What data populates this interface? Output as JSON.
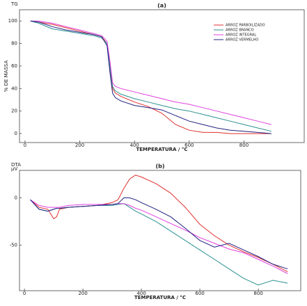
{
  "chart_data": [
    {
      "type": "line",
      "title": "(a)",
      "corner_label": "TG",
      "y_label": "% DE MASSA",
      "x_label": "TEMPERATURA / °C",
      "x": [
        20,
        50,
        100,
        150,
        200,
        250,
        280,
        300,
        310,
        320,
        330,
        350,
        400,
        450,
        500,
        550,
        600,
        650,
        700,
        750,
        800,
        850,
        900
      ],
      "xlim": [
        -20,
        1020
      ],
      "xticks": [
        0,
        200,
        400,
        600,
        800
      ],
      "ylim": [
        -8,
        110
      ],
      "yticks": [
        0,
        20,
        40,
        60,
        80,
        100
      ],
      "grid": false,
      "legend": "upper right",
      "series": [
        {
          "name": "ARROZ PARBOILIZADO",
          "color": "#e03030",
          "values": [
            100,
            99,
            97,
            94,
            91,
            88,
            86,
            80,
            60,
            40,
            36,
            33,
            28,
            24,
            18,
            8,
            3,
            1,
            1,
            0,
            0,
            0,
            0
          ]
        },
        {
          "name": "ARROZ BRANCO",
          "color": "#2a9090",
          "values": [
            100,
            98,
            93,
            91,
            89,
            87,
            85,
            80,
            60,
            42,
            38,
            35,
            31,
            28,
            25,
            22,
            20,
            17,
            14,
            11,
            8,
            5,
            2
          ]
        },
        {
          "name": "ARROZ INTEGRAL",
          "color": "#e040e0",
          "values": [
            100,
            100,
            98,
            95,
            92,
            89,
            87,
            82,
            65,
            45,
            42,
            40,
            37,
            34,
            31,
            28,
            26,
            23,
            20,
            17,
            14,
            11,
            8
          ]
        },
        {
          "name": "ARROZ VERMELHO",
          "color": "#202080",
          "values": [
            100,
            99,
            95,
            92,
            90,
            88,
            86,
            78,
            55,
            36,
            32,
            29,
            25,
            23,
            21,
            16,
            11,
            8,
            5,
            3,
            2,
            1,
            0
          ]
        }
      ]
    },
    {
      "type": "line",
      "title": "(b)",
      "corner_label": "DTA",
      "corner_unit": "µV",
      "x_label": "TEMPERATURA / °C",
      "x": [
        20,
        50,
        80,
        100,
        110,
        120,
        150,
        200,
        250,
        300,
        320,
        340,
        360,
        380,
        400,
        450,
        500,
        550,
        600,
        650,
        700,
        750,
        800,
        850,
        900
      ],
      "xlim": [
        -17,
        945
      ],
      "xticks": [
        0,
        200,
        400,
        600,
        800
      ],
      "ylim": [
        -98,
        29
      ],
      "yticks": [
        0,
        -50
      ],
      "grid": false,
      "series": [
        {
          "name": "ARROZ PARBOILIZADO",
          "color": "#e03030",
          "values": [
            -2,
            -10,
            -12,
            -22,
            -20,
            -12,
            -10,
            -9,
            -8,
            -5,
            -2,
            10,
            20,
            24,
            22,
            15,
            5,
            -10,
            -28,
            -40,
            -50,
            -57,
            -63,
            -70,
            -78
          ]
        },
        {
          "name": "ARROZ BRANCO",
          "color": "#2a9090",
          "values": [
            -2,
            -12,
            -14,
            -12,
            -11,
            -11,
            -10,
            -9,
            -8,
            -8,
            -7,
            -6,
            -10,
            -14,
            -17,
            -25,
            -35,
            -45,
            -55,
            -65,
            -75,
            -85,
            -92,
            -87,
            -90
          ]
        },
        {
          "name": "ARROZ INTEGRAL",
          "color": "#e040e0",
          "values": [
            -2,
            -8,
            -10,
            -10,
            -10,
            -10,
            -8,
            -7,
            -7,
            -7,
            -6,
            -6,
            -8,
            -11,
            -13,
            -20,
            -27,
            -34,
            -42,
            -48,
            -54,
            -58,
            -65,
            -72,
            -80
          ]
        },
        {
          "name": "ARROZ VERMELHO",
          "color": "#202080",
          "values": [
            -2,
            -12,
            -14,
            -12,
            -11,
            -11,
            -10,
            -9,
            -8,
            -7,
            -6,
            0,
            0,
            -2,
            -5,
            -12,
            -20,
            -32,
            -45,
            -52,
            -48,
            -55,
            -62,
            -70,
            -75
          ]
        }
      ]
    }
  ]
}
